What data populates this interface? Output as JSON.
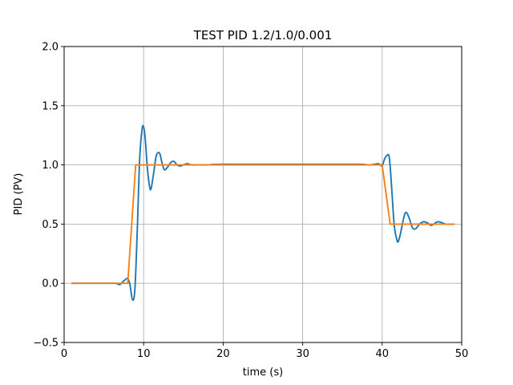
{
  "chart_data": {
    "type": "line",
    "title": "TEST PID 1.2/1.0/0.001",
    "xlabel": "time (s)",
    "ylabel": "PID (PV)",
    "xlim": [
      0,
      50
    ],
    "ylim": [
      -0.5,
      2.0
    ],
    "xticks": [
      0,
      10,
      20,
      30,
      40,
      50
    ],
    "yticks": [
      -0.5,
      0.0,
      0.5,
      1.0,
      1.5,
      2.0
    ],
    "xtick_labels": [
      "0",
      "10",
      "20",
      "30",
      "40",
      "50"
    ],
    "ytick_labels": [
      "−0.5",
      "0.0",
      "0.5",
      "1.0",
      "1.5",
      "2.0"
    ],
    "grid": true,
    "series": [
      {
        "color": "#1f77b4",
        "x": [
          1.0,
          5.5,
          6.0,
          6.5,
          7.0,
          7.5,
          8.0,
          8.3,
          8.6,
          8.9,
          9.2,
          9.5,
          9.8,
          10.0,
          10.2,
          10.5,
          10.8,
          11.0,
          11.3,
          11.6,
          12.0,
          12.3,
          12.6,
          13.0,
          13.4,
          13.8,
          14.2,
          14.6,
          15.0,
          15.5,
          16.0,
          17.0,
          18.0,
          20.0,
          30.0,
          37.0,
          38.0,
          38.5,
          39.0,
          39.5,
          39.8,
          40.0,
          40.3,
          40.6,
          40.9,
          41.2,
          41.5,
          41.8,
          42.0,
          42.3,
          42.7,
          43.0,
          43.4,
          43.8,
          44.2,
          44.7,
          45.2,
          45.7,
          46.2,
          47.0,
          48.0,
          49.0
        ],
        "y": [
          0.0,
          0.0,
          0.0,
          0.0,
          -0.01,
          0.02,
          0.04,
          -0.02,
          -0.14,
          -0.05,
          0.45,
          1.05,
          1.3,
          1.32,
          1.22,
          0.95,
          0.8,
          0.82,
          0.95,
          1.08,
          1.1,
          1.02,
          0.96,
          0.98,
          1.02,
          1.03,
          1.0,
          0.99,
          1.0,
          1.01,
          1.0,
          1.0,
          1.0,
          1.005,
          1.005,
          1.005,
          1.0,
          1.0,
          1.005,
          1.01,
          1.0,
          0.99,
          1.05,
          1.08,
          1.06,
          0.8,
          0.5,
          0.38,
          0.35,
          0.42,
          0.55,
          0.6,
          0.55,
          0.47,
          0.46,
          0.5,
          0.52,
          0.51,
          0.49,
          0.52,
          0.5,
          0.5
        ]
      },
      {
        "color": "#ff7f0e",
        "x": [
          1.0,
          8.0,
          9.0,
          16.0,
          40.0,
          41.0,
          49.0
        ],
        "y": [
          0.0,
          0.0,
          1.0,
          1.0,
          1.0,
          0.5,
          0.5
        ]
      }
    ]
  }
}
